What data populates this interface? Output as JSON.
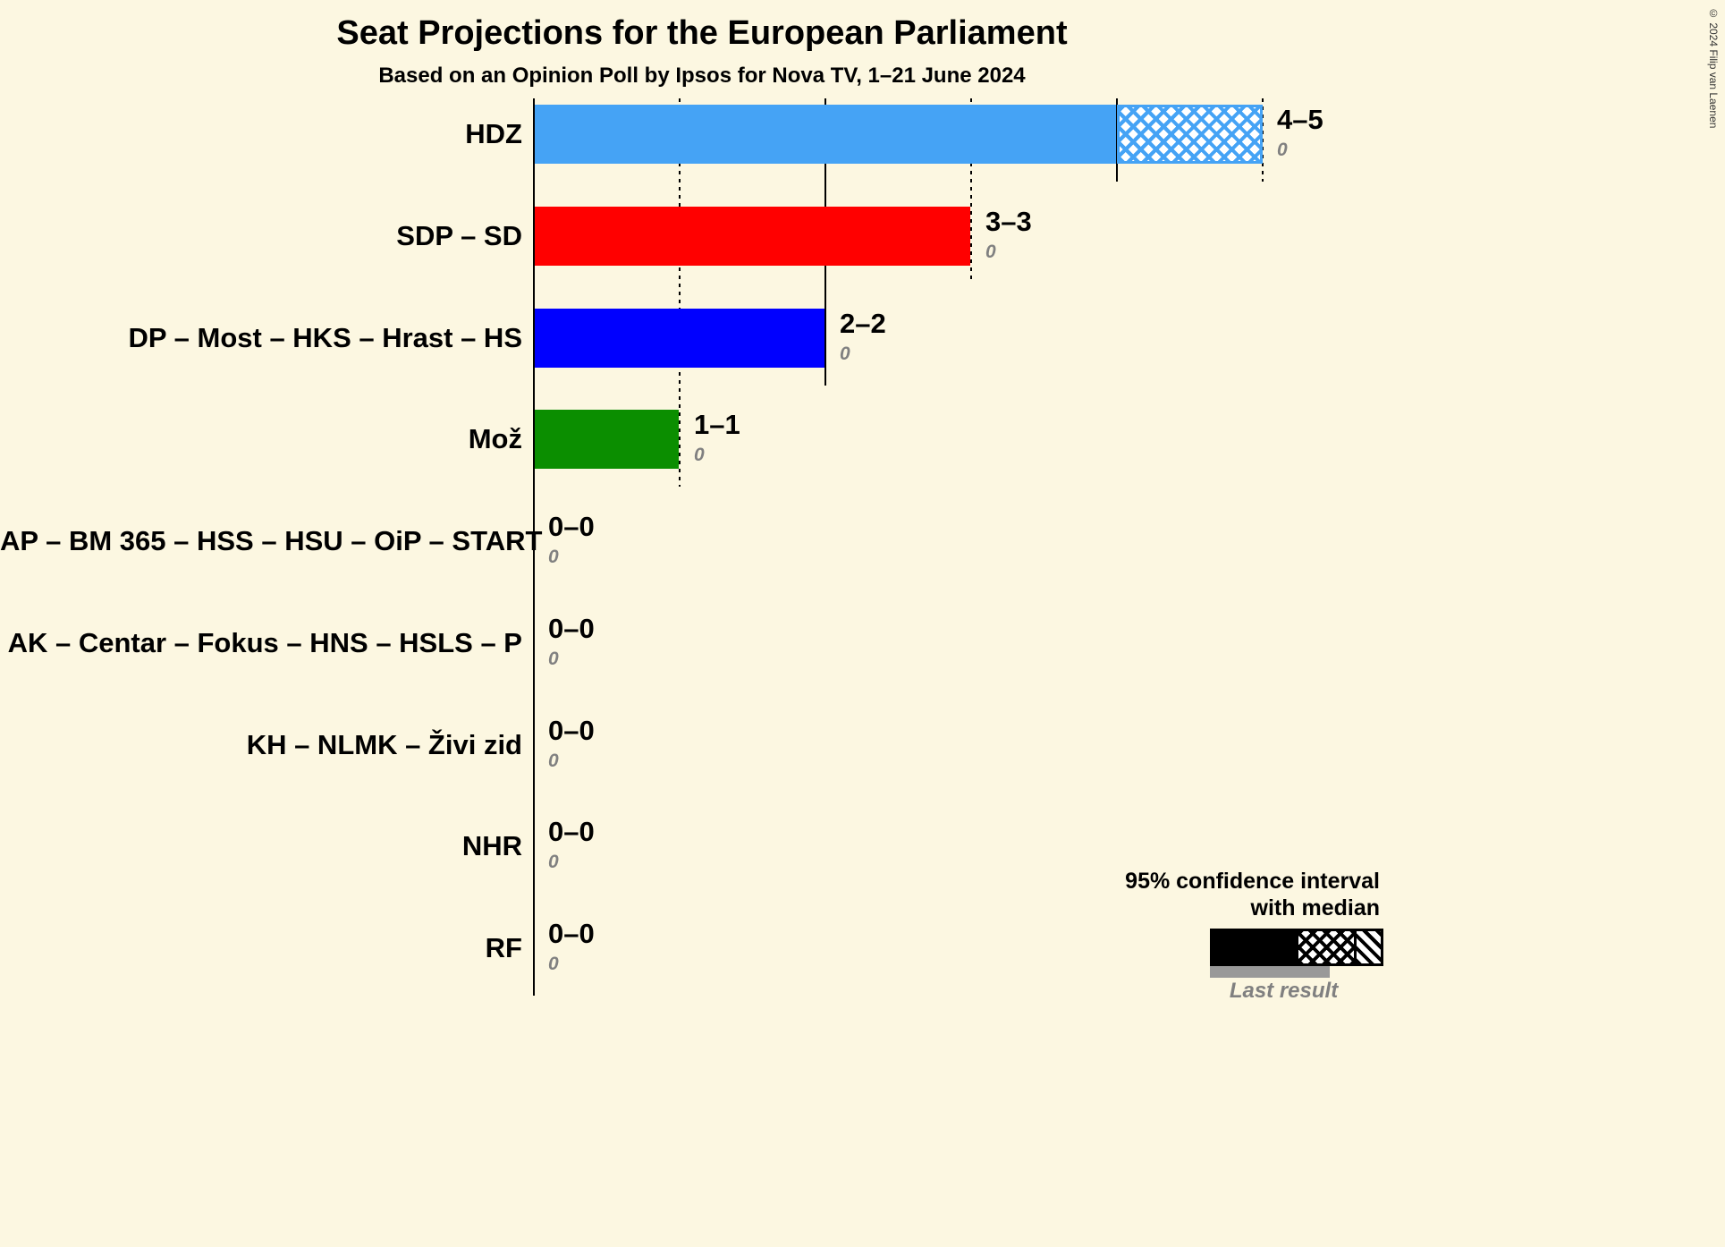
{
  "title": "Seat Projections for the European Parliament",
  "subtitle": "Based on an Opinion Poll by Ipsos for Nova TV, 1–21 June 2024",
  "copyright": "© 2024 Filip van Laenen",
  "legend": {
    "ci_label_line1": "95% confidence interval",
    "ci_label_line2": "with median",
    "last_result_label": "Last result"
  },
  "colors": {
    "background": "#FCF7E1",
    "text": "#000000",
    "muted": "#808080",
    "last_result_bar": "#999999"
  },
  "chart_data": {
    "type": "bar",
    "orientation": "horizontal",
    "title": "Seat Projections for the European Parliament",
    "subtitle": "Based on an Opinion Poll by Ipsos for Nova TV, 1–21 June 2024",
    "x_axis": {
      "min": 0,
      "max": 5,
      "gridline_seats": [
        1,
        2,
        3,
        4,
        5
      ],
      "tick_labels_visible": false
    },
    "legend_position": "bottom-right",
    "parties": [
      {
        "label": "HDZ",
        "value_label": "4–5",
        "ci_low": 4,
        "ci_high": 5,
        "last_result": 0,
        "color": "#45A3F5"
      },
      {
        "label": "SDP – SD",
        "value_label": "3–3",
        "ci_low": 3,
        "ci_high": 3,
        "last_result": 0,
        "color": "#FF0000"
      },
      {
        "label": "DP – Most – HKS – Hrast – HS",
        "value_label": "2–2",
        "ci_low": 2,
        "ci_high": 2,
        "last_result": 0,
        "color": "#0000FF"
      },
      {
        "label": "Mož",
        "value_label": "1–1",
        "ci_low": 1,
        "ci_high": 1,
        "last_result": 0,
        "color": "#0B8E00"
      },
      {
        "label": "AP – BM 365 – HSS – HSU – OiP – START",
        "value_label": "0–0",
        "ci_low": 0,
        "ci_high": 0,
        "last_result": 0,
        "color": "#000000"
      },
      {
        "label": "AK – Centar – Fokus – HNS – HSLS – P",
        "value_label": "0–0",
        "ci_low": 0,
        "ci_high": 0,
        "last_result": 0,
        "color": "#000000"
      },
      {
        "label": "KH – NLMK – Živi zid",
        "value_label": "0–0",
        "ci_low": 0,
        "ci_high": 0,
        "last_result": 0,
        "color": "#000000"
      },
      {
        "label": "NHR",
        "value_label": "0–0",
        "ci_low": 0,
        "ci_high": 0,
        "last_result": 0,
        "color": "#000000"
      },
      {
        "label": "RF",
        "value_label": "0–0",
        "ci_low": 0,
        "ci_high": 0,
        "last_result": 0,
        "color": "#000000"
      }
    ]
  }
}
